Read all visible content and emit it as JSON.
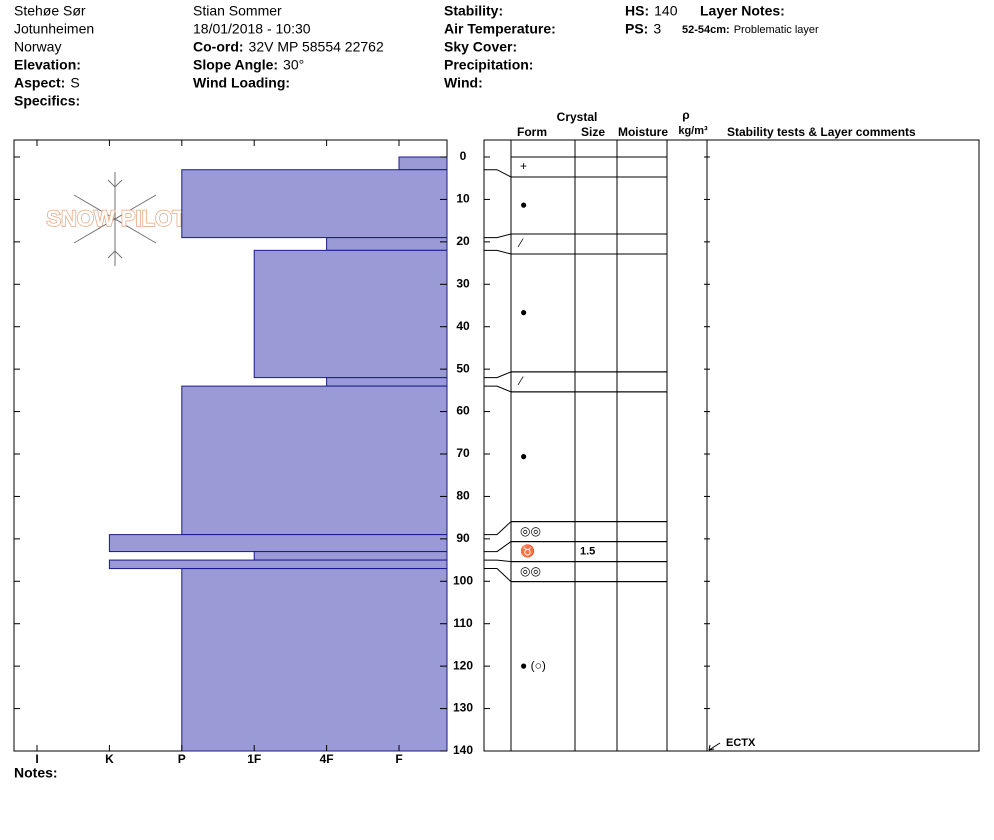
{
  "header": {
    "col1": [
      {
        "value": "Stehøe Sør"
      },
      {
        "value": "Jotunheimen"
      },
      {
        "value": "Norway"
      },
      {
        "label": "Elevation:"
      },
      {
        "label": "Aspect:",
        "value": "S"
      },
      {
        "label": "Specifics:"
      }
    ],
    "col2": [
      {
        "value": "Stian Sommer"
      },
      {
        "value": "18/01/2018 - 10:30"
      },
      {
        "label": "Co-ord:",
        "value": "32V MP 58554 22762"
      },
      {
        "label": "Slope Angle:",
        "value": "30°"
      },
      {
        "label": "Wind Loading:"
      }
    ],
    "col3": [
      {
        "label": "Stability:"
      },
      {
        "label": "Air Temperature:"
      },
      {
        "label": "Sky Cover:"
      },
      {
        "label": "Precipitation:"
      },
      {
        "label": "Wind:"
      }
    ],
    "col4": [
      {
        "label": "HS:",
        "value": "140"
      },
      {
        "label": "PS:",
        "value": "3"
      }
    ],
    "layer_notes_title": "Layer Notes:",
    "layer_notes": [
      {
        "depth": "52-54cm:",
        "note": "Problematic layer"
      }
    ]
  },
  "logo": "SNOW PILOT",
  "columns": {
    "crystal": "Crystal",
    "form": "Form",
    "size": "Size",
    "moisture": "Moisture",
    "rho": "ρ",
    "density": "kg/m³",
    "comments": "Stability tests & Layer comments"
  },
  "profile": {
    "depth_lim": [
      0,
      140
    ],
    "depth_ticks": [
      0,
      10,
      20,
      30,
      40,
      50,
      60,
      70,
      80,
      90,
      100,
      110,
      120,
      130,
      140
    ],
    "hardness_categories": [
      "I",
      "K",
      "P",
      "1F",
      "4F",
      "F"
    ],
    "layers": [
      {
        "top": 0,
        "bottom": 3,
        "hardness": 5,
        "form": "+"
      },
      {
        "top": 3,
        "bottom": 19,
        "hardness": 2,
        "form": "●"
      },
      {
        "top": 19,
        "bottom": 22,
        "hardness": 4,
        "form": "⁄"
      },
      {
        "top": 22,
        "bottom": 52,
        "hardness": 3,
        "form": "●"
      },
      {
        "top": 52,
        "bottom": 54,
        "hardness": 4,
        "form": "⁄"
      },
      {
        "top": 54,
        "bottom": 89,
        "hardness": 2,
        "form": "●"
      },
      {
        "top": 89,
        "bottom": 93,
        "hardness": 1,
        "form": "◎◎"
      },
      {
        "top": 93,
        "bottom": 95,
        "hardness": 3,
        "form": "♉",
        "size": "1.5"
      },
      {
        "top": 95,
        "bottom": 97,
        "hardness": 1,
        "form": "◎◎"
      },
      {
        "top": 97,
        "bottom": 140,
        "hardness": 2,
        "form": "● (○)"
      }
    ],
    "tests": [
      {
        "depth": 140,
        "label": "ECTX"
      }
    ]
  },
  "notes_label": "Notes:"
}
